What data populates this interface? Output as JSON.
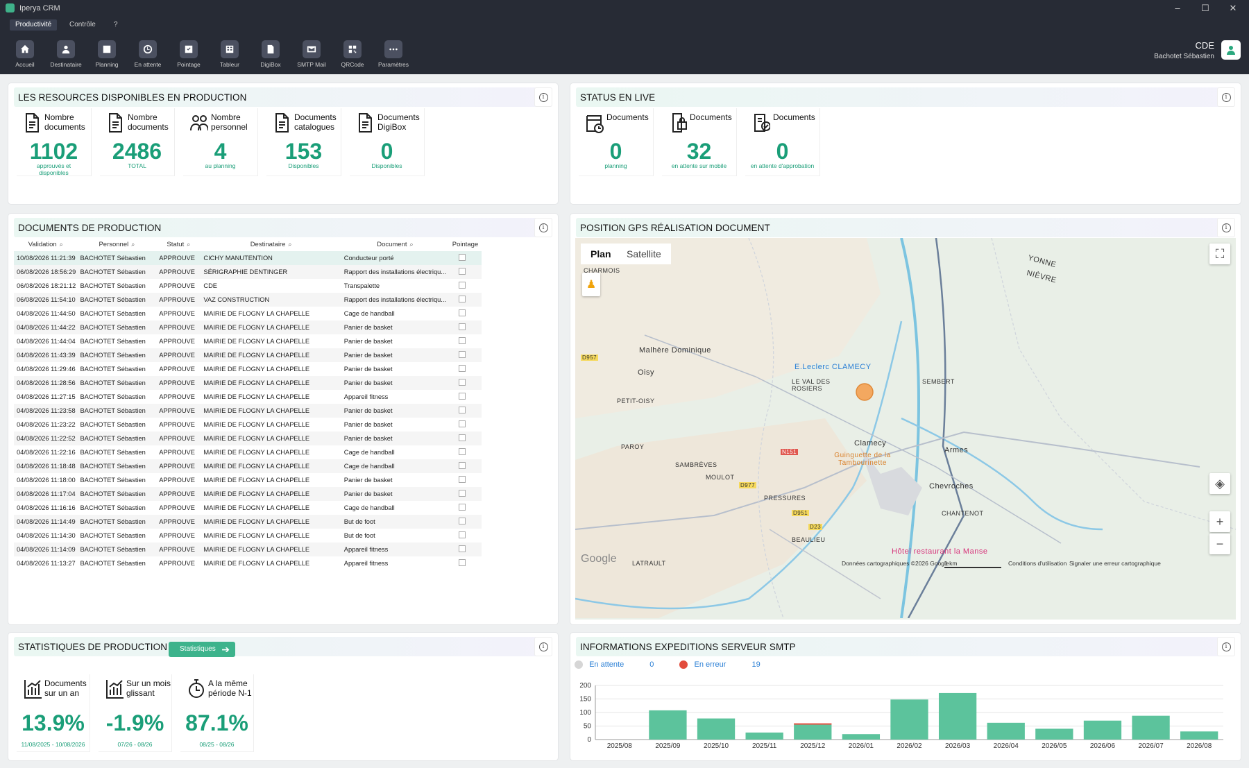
{
  "window": {
    "title": "Iperya CRM",
    "minimize": "–",
    "maximize": "☐",
    "close": "✕"
  },
  "menu": [
    "Productivité",
    "Contrôle",
    "?"
  ],
  "toolbar": [
    "Accueil",
    "Destinataire",
    "Planning",
    "En attente",
    "Pointage",
    "Tableur",
    "DigiBox",
    "SMTP Mail",
    "QRCode",
    "Paramètres"
  ],
  "user": {
    "company": "CDE",
    "name": "Bachotet Sébastien"
  },
  "resources": {
    "title": "LES RESOURCES DISPONIBLES EN PRODUCTION",
    "cards": [
      {
        "label": "Nombre documents",
        "value": "1102",
        "sub": "approuvés et disponibles",
        "icon": "document-icon"
      },
      {
        "label": "Nombre documents",
        "value": "2486",
        "sub": "TOTAL",
        "icon": "document-icon"
      },
      {
        "label": "Nombre personnel",
        "value": "4",
        "sub": "au planning",
        "icon": "users-icon"
      },
      {
        "label": "Documents catalogues",
        "value": "153",
        "sub": "Disponibles",
        "icon": "document-icon"
      },
      {
        "label": "Documents DigiBox",
        "value": "0",
        "sub": "Disponibles",
        "icon": "document-icon"
      }
    ]
  },
  "live": {
    "title": "STATUS EN LIVE",
    "cards": [
      {
        "label": "Documents",
        "value": "0",
        "sub": "planning",
        "icon": "calendar-clock-icon"
      },
      {
        "label": "Documents",
        "value": "32",
        "sub": "en attente sur mobile",
        "icon": "mobile-lock-icon"
      },
      {
        "label": "Documents",
        "value": "0",
        "sub": "en attente d'approbation",
        "icon": "approval-icon"
      }
    ]
  },
  "docs": {
    "title": "DOCUMENTS DE PRODUCTION",
    "columns": [
      "Validation",
      "Personnel",
      "Statut",
      "Destinataire",
      "Document",
      "Pointage"
    ],
    "rows": [
      [
        "10/08/2026 11:21:39",
        "BACHOTET Sébastien",
        "APPROUVE",
        "CICHY MANUTENTION",
        "Conducteur porté"
      ],
      [
        "06/08/2026 18:56:29",
        "BACHOTET Sébastien",
        "APPROUVE",
        "SÉRIGRAPHIE DENTINGER",
        "Rapport des installations électriqu..."
      ],
      [
        "06/08/2026 18:21:12",
        "BACHOTET Sébastien",
        "APPROUVE",
        "CDE",
        "Transpalette"
      ],
      [
        "06/08/2026 11:54:10",
        "BACHOTET Sébastien",
        "APPROUVE",
        "VAZ CONSTRUCTION",
        "Rapport des installations électriqu..."
      ],
      [
        "04/08/2026 11:44:50",
        "BACHOTET Sébastien",
        "APPROUVE",
        "MAIRIE DE FLOGNY LA CHAPELLE",
        "Cage de handball"
      ],
      [
        "04/08/2026 11:44:22",
        "BACHOTET Sébastien",
        "APPROUVE",
        "MAIRIE DE FLOGNY LA CHAPELLE",
        "Panier de basket"
      ],
      [
        "04/08/2026 11:44:04",
        "BACHOTET Sébastien",
        "APPROUVE",
        "MAIRIE DE FLOGNY LA CHAPELLE",
        "Panier de basket"
      ],
      [
        "04/08/2026 11:43:39",
        "BACHOTET Sébastien",
        "APPROUVE",
        "MAIRIE DE FLOGNY LA CHAPELLE",
        "Panier de basket"
      ],
      [
        "04/08/2026 11:29:46",
        "BACHOTET Sébastien",
        "APPROUVE",
        "MAIRIE DE FLOGNY LA CHAPELLE",
        "Panier de basket"
      ],
      [
        "04/08/2026 11:28:56",
        "BACHOTET Sébastien",
        "APPROUVE",
        "MAIRIE DE FLOGNY LA CHAPELLE",
        "Panier de basket"
      ],
      [
        "04/08/2026 11:27:15",
        "BACHOTET Sébastien",
        "APPROUVE",
        "MAIRIE DE FLOGNY LA CHAPELLE",
        "Appareil fitness"
      ],
      [
        "04/08/2026 11:23:58",
        "BACHOTET Sébastien",
        "APPROUVE",
        "MAIRIE DE FLOGNY LA CHAPELLE",
        "Panier de basket"
      ],
      [
        "04/08/2026 11:23:22",
        "BACHOTET Sébastien",
        "APPROUVE",
        "MAIRIE DE FLOGNY LA CHAPELLE",
        "Panier de basket"
      ],
      [
        "04/08/2026 11:22:52",
        "BACHOTET Sébastien",
        "APPROUVE",
        "MAIRIE DE FLOGNY LA CHAPELLE",
        "Panier de basket"
      ],
      [
        "04/08/2026 11:22:16",
        "BACHOTET Sébastien",
        "APPROUVE",
        "MAIRIE DE FLOGNY LA CHAPELLE",
        "Cage de handball"
      ],
      [
        "04/08/2026 11:18:48",
        "BACHOTET Sébastien",
        "APPROUVE",
        "MAIRIE DE FLOGNY LA CHAPELLE",
        "Cage de handball"
      ],
      [
        "04/08/2026 11:18:00",
        "BACHOTET Sébastien",
        "APPROUVE",
        "MAIRIE DE FLOGNY LA CHAPELLE",
        "Panier de basket"
      ],
      [
        "04/08/2026 11:17:04",
        "BACHOTET Sébastien",
        "APPROUVE",
        "MAIRIE DE FLOGNY LA CHAPELLE",
        "Panier de basket"
      ],
      [
        "04/08/2026 11:16:16",
        "BACHOTET Sébastien",
        "APPROUVE",
        "MAIRIE DE FLOGNY LA CHAPELLE",
        "Cage de handball"
      ],
      [
        "04/08/2026 11:14:49",
        "BACHOTET Sébastien",
        "APPROUVE",
        "MAIRIE DE FLOGNY LA CHAPELLE",
        "But de foot"
      ],
      [
        "04/08/2026 11:14:30",
        "BACHOTET Sébastien",
        "APPROUVE",
        "MAIRIE DE FLOGNY LA CHAPELLE",
        "But de foot"
      ],
      [
        "04/08/2026 11:14:09",
        "BACHOTET Sébastien",
        "APPROUVE",
        "MAIRIE DE FLOGNY LA CHAPELLE",
        "Appareil fitness"
      ],
      [
        "04/08/2026 11:13:27",
        "BACHOTET Sébastien",
        "APPROUVE",
        "MAIRIE DE FLOGNY LA CHAPELLE",
        "Appareil fitness"
      ]
    ]
  },
  "gps": {
    "title": "POSITION GPS RÉALISATION DOCUMENT",
    "tab_plan": "Plan",
    "tab_sat": "Satellite",
    "labels": [
      "CHARMOIS",
      "Malhère Dominique",
      "Oisy",
      "E.Leclerc CLAMECY",
      "LE VAL DES ROSIERS",
      "SEMBERT",
      "PETIT-OISY",
      "PAROY",
      "Clamecy",
      "Guinguette de la Tambourinette",
      "Armes",
      "SAMBRÈVES",
      "MOULOT",
      "Chevroches",
      "CHANTENOT",
      "PRESSURES",
      "BEAULIEU",
      "Hôtel restaurant la Manse",
      "LATRAULT",
      "YONNE",
      "NIÈVRE",
      "D957",
      "D977",
      "D951",
      "D23",
      "N151",
      "Google"
    ],
    "footer": "Données cartographiques ©2026 Google",
    "scale": "1 km",
    "terms": "Conditions d'utilisation",
    "report": "Signaler une erreur cartographique"
  },
  "stats": {
    "title": "STATISTIQUES DE PRODUCTION",
    "button": "Statistiques",
    "cards": [
      {
        "label": "Documents sur un an",
        "value": "13.9%",
        "sub": "11/08/2025 - 10/08/2026",
        "icon": "chart-icon"
      },
      {
        "label": "Sur un mois glissant",
        "value": "-1.9%",
        "sub": "07/26 - 08/26",
        "icon": "chart-icon"
      },
      {
        "label": "A la même période N-1",
        "value": "87.1%",
        "sub": "08/25 - 08/26",
        "icon": "stopwatch-icon"
      }
    ]
  },
  "smtp": {
    "title": "INFORMATIONS EXPEDITIONS SERVEUR SMTP",
    "pending_label": "En attente",
    "pending_value": "0",
    "error_label": "En erreur",
    "error_value": "19",
    "colors": {
      "pending": "#d6d6d6",
      "error": "#e24c3c",
      "bar": "#5cc39c"
    }
  },
  "chart_data": {
    "type": "bar",
    "categories": [
      "2025/08",
      "2025/09",
      "2025/10",
      "2025/11",
      "2025/12",
      "2026/01",
      "2026/02",
      "2026/03",
      "2026/04",
      "2026/05",
      "2026/06",
      "2026/07",
      "2026/08"
    ],
    "series": [
      {
        "name": "En attente",
        "values": [
          0,
          108,
          78,
          26,
          55,
          20,
          148,
          172,
          62,
          40,
          70,
          88,
          30
        ]
      },
      {
        "name": "En erreur",
        "values": [
          0,
          0,
          0,
          0,
          5,
          0,
          0,
          0,
          0,
          0,
          0,
          0,
          0
        ]
      }
    ],
    "yticks": [
      "0",
      "50",
      "100",
      "150",
      "200"
    ],
    "ylim": [
      0,
      200
    ],
    "stacked": true
  }
}
